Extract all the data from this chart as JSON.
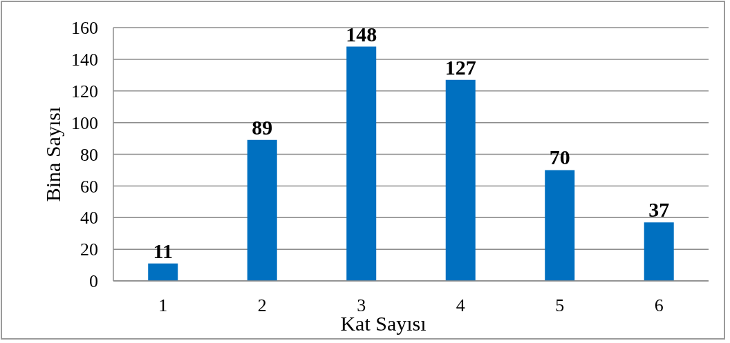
{
  "chart_data": {
    "type": "bar",
    "xlabel": "Kat Sayısı",
    "ylabel": "Bina Sayısı",
    "categories": [
      "1",
      "2",
      "3",
      "4",
      "5",
      "6"
    ],
    "values": [
      11,
      89,
      148,
      127,
      70,
      37
    ],
    "color": "#0070c0",
    "ylim": [
      0,
      160
    ],
    "yticks": [
      0,
      20,
      40,
      60,
      80,
      100,
      120,
      140,
      160
    ],
    "grid": "y",
    "data_labels": true
  }
}
